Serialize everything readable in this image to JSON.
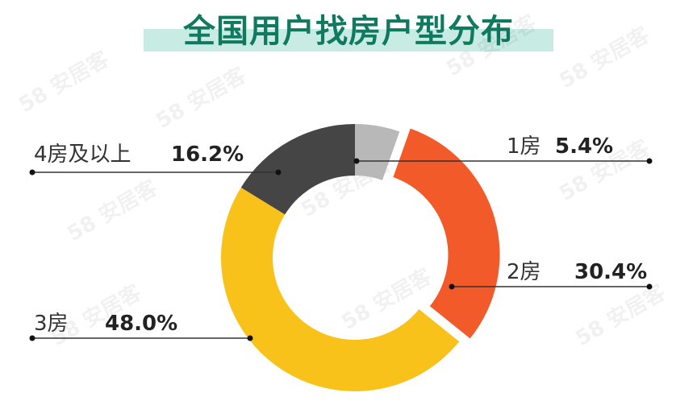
{
  "title": "全国用户找房户型分布",
  "watermark": "58 安居客",
  "chart_data": {
    "type": "pie",
    "variant": "donut",
    "title": "全国用户找房户型分布",
    "slices": [
      {
        "label": "1房",
        "value": 5.4,
        "value_text": "5.4%",
        "color": "#b8b8b8"
      },
      {
        "label": "2房",
        "value": 30.4,
        "value_text": "30.4%",
        "color": "#f25a2a"
      },
      {
        "label": "3房",
        "value": 48.0,
        "value_text": "48.0%",
        "color": "#f9c21a"
      },
      {
        "label": "4房及以上",
        "value": 16.2,
        "value_text": "16.2%",
        "color": "#454545"
      }
    ]
  }
}
